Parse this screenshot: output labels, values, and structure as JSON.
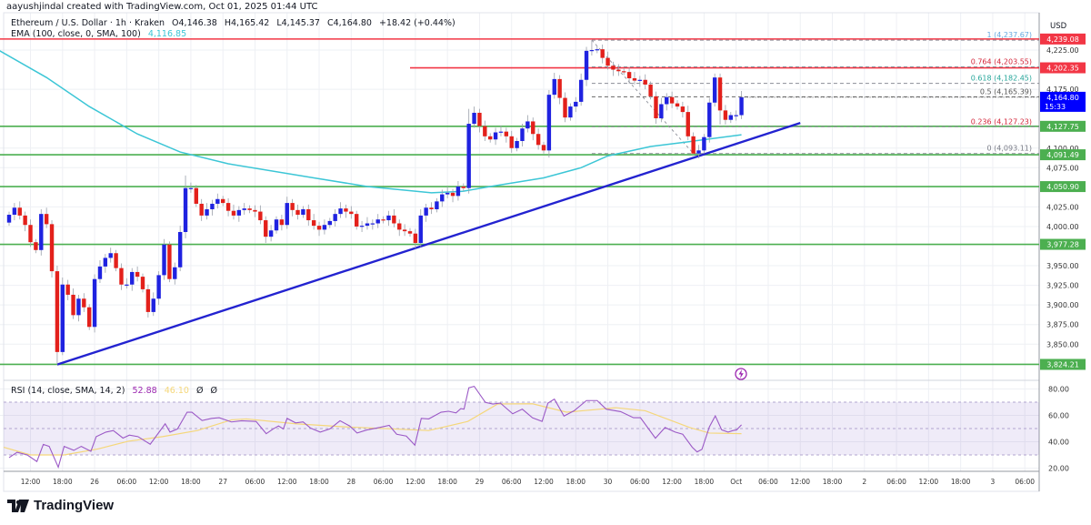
{
  "attribution": "aayushjindal created with TradingView.com, Oct 01, 2025 01:44 UTC",
  "legend": {
    "symbol": "Ethereum / U.S. Dollar · 1h · Kraken",
    "open": "O4,146.38",
    "high": "H4,165.42",
    "low": "L4,145.37",
    "close": "C4,164.80",
    "change": "+18.42 (+0.44%)",
    "ema_label": "EMA (100, close, 0, SMA, 100)",
    "ema_value": "4,116.85",
    "rsi_label": "RSI (14, close, SMA, 14, 2)",
    "rsi_value": "52.88",
    "rsi_sma_value": "46.10",
    "rsi_extra1": "Ø",
    "rsi_extra2": "Ø"
  },
  "logo_text": "TradingView",
  "colors": {
    "up": "#1f22e0",
    "down": "#e3201b",
    "ema": "#3cc6d6",
    "trendline": "#2323d0",
    "support": "#4caf50",
    "resistance": "#f23645",
    "current_price": "#0000ff",
    "rsi": "#9b59c6",
    "rsi_sma": "#f5d77a",
    "rsi_band": "#7e57c2"
  },
  "chart_data": {
    "type": "candlestick",
    "symbol": "ETH/USD",
    "interval": "1h",
    "price_axis": {
      "currency": "USD",
      "ticks": [
        "4,225.00",
        "4,175.00",
        "4,100.00",
        "4,075.00",
        "4,025.00",
        "4,000.00",
        "3,950.00",
        "3,925.00",
        "3,900.00",
        "3,875.00",
        "3,850.00"
      ],
      "tick_values": [
        4225,
        4175,
        4100,
        4075,
        4025,
        4000,
        3950,
        3925,
        3900,
        3875,
        3850
      ],
      "range": [
        3815,
        4245
      ]
    },
    "time_axis": {
      "ticks": [
        "12:00",
        "18:00",
        "26",
        "06:00",
        "12:00",
        "18:00",
        "27",
        "06:00",
        "12:00",
        "18:00",
        "28",
        "06:00",
        "12:00",
        "18:00",
        "29",
        "06:00",
        "12:00",
        "18:00",
        "30",
        "06:00",
        "12:00",
        "18:00",
        "Oct",
        "06:00",
        "12:00",
        "18:00",
        "2",
        "06:00",
        "12:00",
        "18:00",
        "3",
        "06:00"
      ]
    },
    "first_open": 4005,
    "closes": [
      4015,
      4024,
      4014,
      4002,
      3980,
      3970,
      4016,
      4003,
      3943,
      3840,
      3926,
      3913,
      3887,
      3908,
      3897,
      3872,
      3933,
      3949,
      3960,
      3966,
      3947,
      3926,
      3926,
      3942,
      3936,
      3920,
      3891,
      3908,
      3938,
      3977,
      3933,
      3948,
      3993,
      4049,
      4049,
      4029,
      4014,
      4022,
      4029,
      4035,
      4030,
      4020,
      4014,
      4021,
      4023,
      4021,
      4019,
      4008,
      3987,
      3995,
      4009,
      4002,
      4030,
      4021,
      4015,
      4022,
      4008,
      4001,
      3996,
      4002,
      4007,
      4016,
      4023,
      4019,
      4016,
      4000,
      4001,
      4004,
      4004,
      4009,
      4008,
      4014,
      4004,
      3996,
      3994,
      3991,
      3979,
      4014,
      4024,
      4022,
      4032,
      4041,
      4043,
      4039,
      4051,
      4049,
      4131,
      4145,
      4128,
      4115,
      4111,
      4120,
      4121,
      4115,
      4100,
      4109,
      4125,
      4134,
      4118,
      4104,
      4097,
      4168,
      4188,
      4164,
      4139,
      4153,
      4159,
      4187,
      4224,
      4225,
      4226,
      4215,
      4205,
      4200,
      4198,
      4197,
      4189,
      4186,
      4187,
      4181,
      4166,
      4138,
      4156,
      4165,
      4157,
      4153,
      4146,
      4115,
      4093,
      4097,
      4114,
      4158,
      4190,
      4148,
      4136,
      4142,
      4142,
      4164.8
    ],
    "wick_extremes": {
      "9": {
        "l": 3824.21
      },
      "10": {
        "h": 3935
      },
      "33": {
        "h": 4065
      },
      "86": {
        "h": 4150
      },
      "101": {
        "l": 4088
      },
      "109": {
        "h": 4237.67
      },
      "128": {
        "l": 4093.11
      },
      "132": {
        "h": 4195
      },
      "133": {
        "l": 4130
      }
    },
    "ema100": [
      [
        -2,
        4225
      ],
      [
        7,
        4190
      ],
      [
        15,
        4153
      ],
      [
        24,
        4118
      ],
      [
        32,
        4095
      ],
      [
        41,
        4080
      ],
      [
        57,
        4062
      ],
      [
        67,
        4051
      ],
      [
        79,
        4043
      ],
      [
        85,
        4045
      ],
      [
        90,
        4051
      ],
      [
        100,
        4062
      ],
      [
        107,
        4075
      ],
      [
        112,
        4090
      ],
      [
        120,
        4102
      ],
      [
        127,
        4108
      ],
      [
        137,
        4117
      ]
    ],
    "current_price": {
      "value": "4,164.80",
      "countdown": "15:33"
    },
    "horizontal_levels": [
      {
        "label": "4,239.08",
        "value": 4239.08,
        "kind": "resistance",
        "from_candle": -2
      },
      {
        "label": "4,202.35",
        "value": 4202.35,
        "kind": "resistance",
        "from_candle": 75
      },
      {
        "label": "4,127.75",
        "value": 4127.75,
        "kind": "support",
        "from_candle": -2
      },
      {
        "label": "4,091.49",
        "value": 4091.49,
        "kind": "support",
        "from_candle": -2
      },
      {
        "label": "4,050.90",
        "value": 4050.9,
        "kind": "support",
        "from_candle": -2
      },
      {
        "label": "3,977.28",
        "value": 3977.28,
        "kind": "support",
        "from_candle": -2
      },
      {
        "label": "3,824.21",
        "value": 3824.21,
        "kind": "support",
        "from_candle": -2
      }
    ],
    "trendline": {
      "from": [
        9,
        3824
      ],
      "to": [
        148,
        4132
      ]
    },
    "fib_retracement": {
      "from": [
        109,
        4237.67
      ],
      "to": [
        128,
        4093.11
      ],
      "levels": [
        {
          "label": "1 (4,237.67)",
          "value": 4237.67,
          "color": "#64a8e0"
        },
        {
          "label": "0.764 (4,203.55)",
          "value": 4203.55,
          "color": "#d3263a"
        },
        {
          "label": "0.618 (4,182.45)",
          "value": 4182.45,
          "color": "#26a69a"
        },
        {
          "label": "0.5 (4,165.39)",
          "value": 4165.39,
          "color": "#555555"
        },
        {
          "label": "0.236 (4,127.23)",
          "value": 4127.23,
          "color": "#d3263a"
        },
        {
          "label": "0 (4,093.11)",
          "value": 4093.11,
          "color": "#787b86"
        }
      ]
    },
    "rsi": {
      "ticks": [
        "80.00",
        "60.00",
        "40.00",
        "20.00"
      ],
      "tick_values": [
        80,
        60,
        40,
        20
      ],
      "band": [
        30,
        70
      ],
      "values": [
        [
          0,
          28
        ],
        [
          1.5,
          32
        ],
        [
          3.4,
          30
        ],
        [
          5.2,
          25
        ],
        [
          6.4,
          38
        ],
        [
          7.5,
          36.5
        ],
        [
          9.2,
          20.7
        ],
        [
          10.3,
          36.5
        ],
        [
          12.1,
          33.5
        ],
        [
          13.5,
          36.5
        ],
        [
          15.3,
          32.8
        ],
        [
          16.3,
          43.9
        ],
        [
          18.1,
          47.3
        ],
        [
          19.5,
          48.5
        ],
        [
          21.3,
          42.8
        ],
        [
          22.5,
          45
        ],
        [
          24.1,
          43.9
        ],
        [
          26.4,
          38.1
        ],
        [
          29.2,
          53.6
        ],
        [
          30.1,
          47.3
        ],
        [
          31.5,
          49.7
        ],
        [
          33.3,
          62.4
        ],
        [
          34.2,
          62.4
        ],
        [
          36.1,
          56.1
        ],
        [
          37.9,
          57.7
        ],
        [
          39.3,
          58.2
        ],
        [
          41.6,
          55
        ],
        [
          43.5,
          55.9
        ],
        [
          46.2,
          55.4
        ],
        [
          48.1,
          46.1
        ],
        [
          49.4,
          49.7
        ],
        [
          50.4,
          52
        ],
        [
          51.3,
          49.7
        ],
        [
          52,
          57.7
        ],
        [
          53.6,
          54.3
        ],
        [
          55,
          55
        ],
        [
          56.4,
          50.3
        ],
        [
          58.2,
          47.3
        ],
        [
          60,
          49.7
        ],
        [
          61.9,
          55.9
        ],
        [
          63.7,
          52
        ],
        [
          65.1,
          46.6
        ],
        [
          66.9,
          48.9
        ],
        [
          69.3,
          50.8
        ],
        [
          71.1,
          52.4
        ],
        [
          72.5,
          45.7
        ],
        [
          74.3,
          44.3
        ],
        [
          75.9,
          37.4
        ],
        [
          77.1,
          57.7
        ],
        [
          78.5,
          57.3
        ],
        [
          80.8,
          62.4
        ],
        [
          82.2,
          63.1
        ],
        [
          83.6,
          61.9
        ],
        [
          84.5,
          65.1
        ],
        [
          85.1,
          64.7
        ],
        [
          86,
          80.9
        ],
        [
          87,
          82
        ],
        [
          89.1,
          69.8
        ],
        [
          90.5,
          68.6
        ],
        [
          91.9,
          69.3
        ],
        [
          94.2,
          61.2
        ],
        [
          96,
          64.7
        ],
        [
          97.9,
          58.2
        ],
        [
          99.7,
          55.4
        ],
        [
          100.8,
          69.3
        ],
        [
          102,
          72.3
        ],
        [
          103.8,
          59.5
        ],
        [
          105.7,
          63.5
        ],
        [
          108,
          71.2
        ],
        [
          110,
          71.2
        ],
        [
          111.7,
          64.7
        ],
        [
          114.4,
          62.8
        ],
        [
          116.8,
          58.2
        ],
        [
          118.1,
          58.2
        ],
        [
          120.9,
          42.7
        ],
        [
          122.7,
          50.8
        ],
        [
          124.6,
          47.3
        ],
        [
          126,
          45.7
        ],
        [
          127.8,
          35.8
        ],
        [
          128.7,
          32.3
        ],
        [
          129.6,
          34.2
        ],
        [
          131,
          51.3
        ],
        [
          132.1,
          59.6
        ],
        [
          133.3,
          49
        ],
        [
          134.5,
          47.3
        ],
        [
          135.4,
          48.5
        ],
        [
          136.1,
          49
        ],
        [
          137,
          52.88
        ]
      ],
      "sma": [
        [
          -1,
          35.8
        ],
        [
          4,
          30
        ],
        [
          10.3,
          30
        ],
        [
          16.7,
          34.6
        ],
        [
          22.3,
          40.4
        ],
        [
          28.7,
          43.9
        ],
        [
          35.2,
          48.5
        ],
        [
          41.6,
          56.6
        ],
        [
          44.4,
          57.3
        ],
        [
          53.6,
          53.6
        ],
        [
          62.8,
          51.3
        ],
        [
          72,
          49.7
        ],
        [
          78.5,
          48.5
        ],
        [
          85.8,
          55.4
        ],
        [
          91.4,
          68.6
        ],
        [
          97.9,
          68.8
        ],
        [
          104.3,
          62.4
        ],
        [
          113.5,
          65.8
        ],
        [
          119,
          63.5
        ],
        [
          127.3,
          50.8
        ],
        [
          131,
          46.6
        ],
        [
          137,
          46.1
        ]
      ]
    }
  }
}
